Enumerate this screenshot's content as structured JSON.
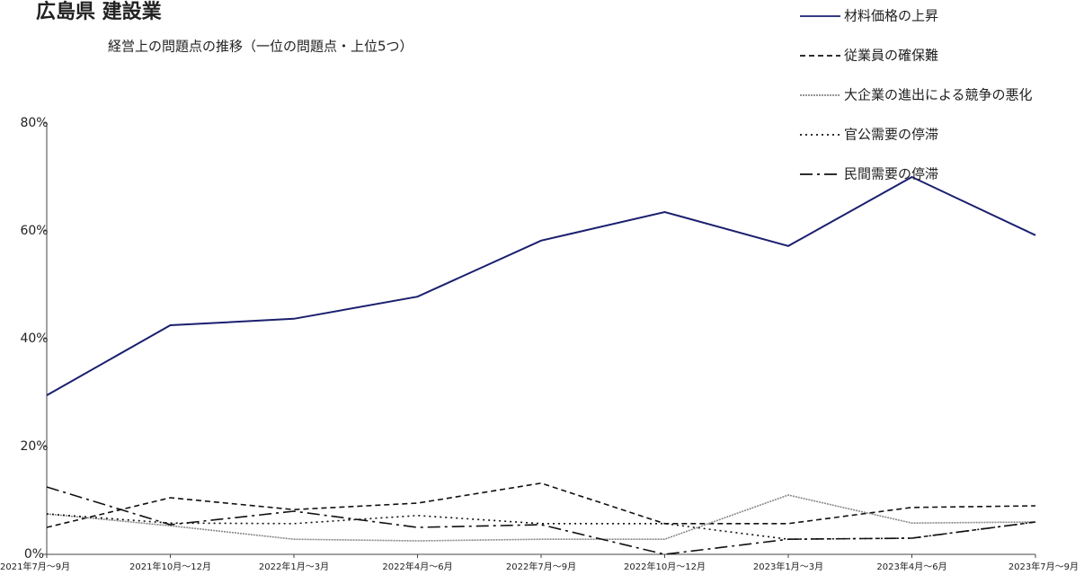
{
  "chart_data": {
    "type": "line",
    "title": "広島県 建設業",
    "subtitle": "経営上の問題点の推移（一位の問題点・上位5つ）",
    "categories": [
      "2021年7月～9月",
      "2021年10月～12月",
      "2022年1月～3月",
      "2022年4月～6月",
      "2022年7月～9月",
      "2022年10月～12月",
      "2023年1月～3月",
      "2023年4月～6月",
      "2023年7月～9月"
    ],
    "series": [
      {
        "name": "材料価格の上昇",
        "color": "#1a1f6e",
        "dash": "solid",
        "values": [
          29.5,
          42.5,
          43.7,
          47.8,
          58.2,
          63.5,
          57.2,
          70.0,
          59.2
        ]
      },
      {
        "name": "従業員の確保難",
        "color": "#111111",
        "dash": "dashed",
        "values": [
          5.0,
          10.5,
          8.3,
          9.5,
          13.2,
          5.7,
          5.7,
          8.7,
          9.0
        ]
      },
      {
        "name": "大企業の進出による競争の悪化",
        "color": "#888888",
        "dash": "dense",
        "values": [
          7.5,
          5.3,
          2.8,
          2.5,
          2.8,
          2.8,
          11.0,
          5.8,
          6.0
        ]
      },
      {
        "name": "官公需要の停滞",
        "color": "#111111",
        "dash": "dotted",
        "values": [
          7.5,
          5.8,
          5.7,
          7.2,
          5.7,
          5.7,
          2.8,
          3.0,
          6.0
        ]
      },
      {
        "name": "民間需要の停滞",
        "color": "#111111",
        "dash": "dashdot",
        "values": [
          12.5,
          5.5,
          8.0,
          5.0,
          5.5,
          0,
          2.8,
          3.0,
          6.0
        ]
      }
    ],
    "ylim": [
      0,
      80
    ],
    "yticks": [
      {
        "value": 0,
        "label": "0%"
      },
      {
        "value": 20,
        "label": "20%"
      },
      {
        "value": 40,
        "label": "40%"
      },
      {
        "value": 60,
        "label": "60%"
      },
      {
        "value": 80,
        "label": "80%"
      }
    ],
    "legend": "top-right"
  }
}
